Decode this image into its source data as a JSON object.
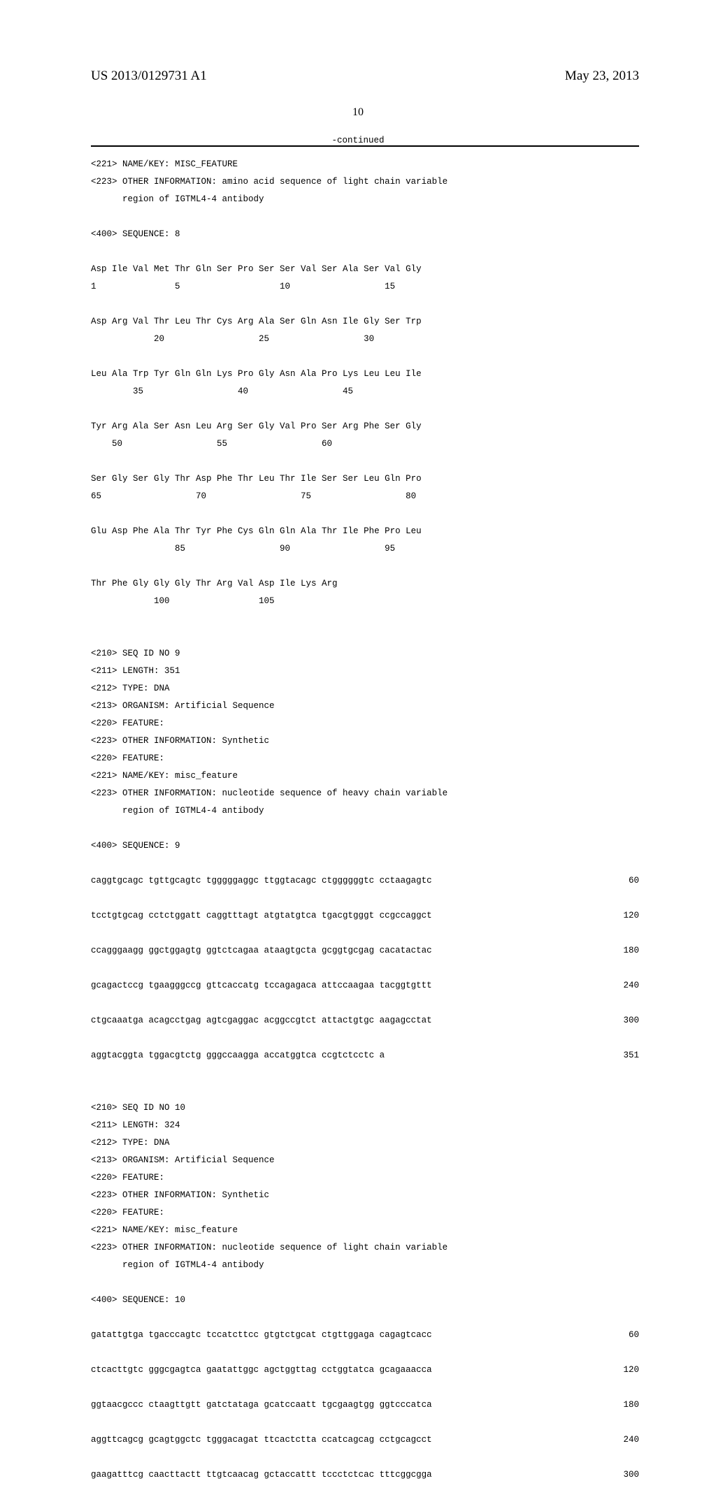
{
  "header": {
    "publication_number": "US 2013/0129731 A1",
    "publication_date": "May 23, 2013"
  },
  "page_number": "10",
  "continued_label": "-continued",
  "seq8": {
    "line_221": "<221> NAME/KEY: MISC_FEATURE",
    "line_223a": "<223> OTHER INFORMATION: amino acid sequence of light chain variable",
    "line_223b": "      region of IGTML4-4 antibody",
    "line_400": "<400> SEQUENCE: 8",
    "r1a": "Asp Ile Val Met Thr Gln Ser Pro Ser Ser Val Ser Ala Ser Val Gly",
    "r1b": "1               5                   10                  15",
    "r2a": "Asp Arg Val Thr Leu Thr Cys Arg Ala Ser Gln Asn Ile Gly Ser Trp",
    "r2b": "            20                  25                  30",
    "r3a": "Leu Ala Trp Tyr Gln Gln Lys Pro Gly Asn Ala Pro Lys Leu Leu Ile",
    "r3b": "        35                  40                  45",
    "r4a": "Tyr Arg Ala Ser Asn Leu Arg Ser Gly Val Pro Ser Arg Phe Ser Gly",
    "r4b": "    50                  55                  60",
    "r5a": "Ser Gly Ser Gly Thr Asp Phe Thr Leu Thr Ile Ser Ser Leu Gln Pro",
    "r5b": "65                  70                  75                  80",
    "r6a": "Glu Asp Phe Ala Thr Tyr Phe Cys Gln Gln Ala Thr Ile Phe Pro Leu",
    "r6b": "                85                  90                  95",
    "r7a": "Thr Phe Gly Gly Gly Thr Arg Val Asp Ile Lys Arg",
    "r7b": "            100                 105"
  },
  "seq9": {
    "line_210": "<210> SEQ ID NO 9",
    "line_211": "<211> LENGTH: 351",
    "line_212": "<212> TYPE: DNA",
    "line_213": "<213> ORGANISM: Artificial Sequence",
    "line_220a": "<220> FEATURE:",
    "line_223a": "<223> OTHER INFORMATION: Synthetic",
    "line_220b": "<220> FEATURE:",
    "line_221": "<221> NAME/KEY: misc_feature",
    "line_223b": "<223> OTHER INFORMATION: nucleotide sequence of heavy chain variable",
    "line_223c": "      region of IGTML4-4 antibody",
    "line_400": "<400> SEQUENCE: 9",
    "s1": "caggtgcagc tgttgcagtc tgggggaggc ttggtacagc ctggggggtc cctaagagtc",
    "p1": "60",
    "s2": "tcctgtgcag cctctggatt caggtttagt atgtatgtca tgacgtgggt ccgccaggct",
    "p2": "120",
    "s3": "ccagggaagg ggctggagtg ggtctcagaa ataagtgcta gcggtgcgag cacatactac",
    "p3": "180",
    "s4": "gcagactccg tgaagggccg gttcaccatg tccagagaca attccaagaa tacggtgttt",
    "p4": "240",
    "s5": "ctgcaaatga acagcctgag agtcgaggac acggccgtct attactgtgc aagagcctat",
    "p5": "300",
    "s6": "aggtacggta tggacgtctg gggccaagga accatggtca ccgtctcctc a",
    "p6": "351"
  },
  "seq10": {
    "line_210": "<210> SEQ ID NO 10",
    "line_211": "<211> LENGTH: 324",
    "line_212": "<212> TYPE: DNA",
    "line_213": "<213> ORGANISM: Artificial Sequence",
    "line_220a": "<220> FEATURE:",
    "line_223a": "<223> OTHER INFORMATION: Synthetic",
    "line_220b": "<220> FEATURE:",
    "line_221": "<221> NAME/KEY: misc_feature",
    "line_223b": "<223> OTHER INFORMATION: nucleotide sequence of light chain variable",
    "line_223c": "      region of IGTML4-4 antibody",
    "line_400": "<400> SEQUENCE: 10",
    "s1": "gatattgtga tgacccagtc tccatcttcc gtgtctgcat ctgttggaga cagagtcacc",
    "p1": "60",
    "s2": "ctcacttgtc gggcgagtca gaatattggc agctggttag cctggtatca gcagaaacca",
    "p2": "120",
    "s3": "ggtaacgccc ctaagttgtt gatctataga gcatccaatt tgcgaagtgg ggtcccatca",
    "p3": "180",
    "s4": "aggttcagcg gcagtggctc tgggacagat ttcactctta ccatcagcag cctgcagcct",
    "p4": "240",
    "s5": "gaagatttcg caacttactt ttgtcaacag gctaccattt tccctctcac tttcggcgga",
    "p5": "300"
  }
}
